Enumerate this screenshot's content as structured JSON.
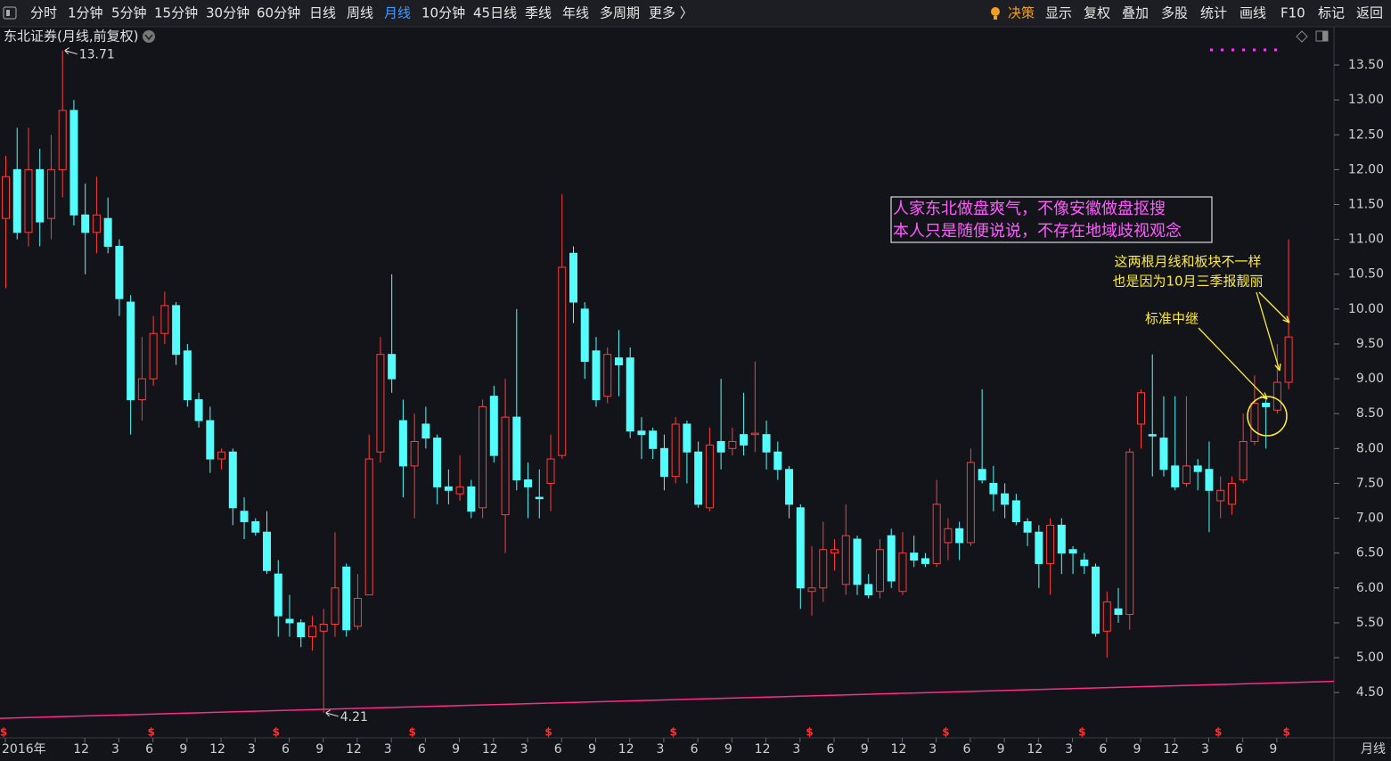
{
  "toolbar": {
    "periods": [
      "分时",
      "1分钟",
      "5分钟",
      "15分钟",
      "30分钟",
      "60分钟",
      "日线",
      "周线",
      "月线",
      "10分钟",
      "45日线",
      "季线",
      "年线",
      "多周期",
      "更多 〉"
    ],
    "active_index": 8,
    "tools": [
      "决策",
      "显示",
      "复权",
      "叠加",
      "多股",
      "统计",
      "画线",
      "F10",
      "标记",
      "返回"
    ]
  },
  "chart_data": {
    "type": "candlestick",
    "title": "东北证券(月线,前复权)",
    "period_label": "月线",
    "categories": [
      "2016年",
      null,
      null,
      null,
      null,
      null,
      null,
      "12",
      null,
      null,
      "3",
      null,
      null,
      "6",
      null,
      null,
      "9",
      null,
      null,
      "12",
      null,
      null,
      "3",
      null,
      null,
      "6",
      null,
      null,
      "9",
      null,
      null,
      "12",
      null,
      null,
      "3",
      null,
      null,
      "6",
      null,
      null,
      "9",
      null,
      null,
      "12",
      null,
      null,
      "3",
      null,
      null,
      "6",
      null,
      null,
      "9",
      null,
      null,
      "12",
      null,
      null,
      "3",
      null,
      null,
      "6",
      null,
      null,
      "9",
      null,
      null,
      "12",
      null,
      null,
      "3",
      null,
      null,
      "6",
      null,
      null,
      "9",
      null,
      null,
      "12",
      null,
      null,
      "3",
      null,
      null,
      "6",
      null,
      null,
      "9",
      null,
      null,
      "12",
      null,
      null,
      "3",
      null,
      null,
      "6",
      null,
      null,
      "9",
      null,
      null,
      "12",
      null,
      null,
      "3",
      null,
      null,
      "6",
      null,
      null,
      "9",
      null
    ],
    "open": [
      11.3,
      12.0,
      11.1,
      12.0,
      11.3,
      12.0,
      12.85,
      11.35,
      11.1,
      11.3,
      10.9,
      10.1,
      8.7,
      9.0,
      9.65,
      10.05,
      9.4,
      8.7,
      8.4,
      7.85,
      7.95,
      7.1,
      6.95,
      6.8,
      6.2,
      5.55,
      5.5,
      5.3,
      5.38,
      5.48,
      6.3,
      5.45,
      5.9,
      7.95,
      9.35,
      8.4,
      7.75,
      8.35,
      8.15,
      7.45,
      7.35,
      7.45,
      7.15,
      8.75,
      7.05,
      8.45,
      7.55,
      7.3,
      7.5,
      7.9,
      10.8,
      10.0,
      9.4,
      8.75,
      9.3,
      9.3,
      8.25,
      8.25,
      8.0,
      7.6,
      8.35,
      7.95,
      7.15,
      8.1,
      8.0,
      8.2,
      8.2,
      8.2,
      7.95,
      7.7,
      7.15,
      5.95,
      6.0,
      6.5,
      6.05,
      6.7,
      6.05,
      5.95,
      6.75,
      5.95,
      6.5,
      6.42,
      6.35,
      6.65,
      6.85,
      6.65,
      7.7,
      7.5,
      7.35,
      7.25,
      6.95,
      6.8,
      6.35,
      6.9,
      6.55,
      6.4,
      6.3,
      5.38,
      5.7,
      5.62,
      8.35,
      8.2,
      8.15,
      7.75,
      7.5,
      7.75,
      7.7,
      7.25,
      7.2,
      7.55,
      8.1,
      8.65,
      8.55,
      8.95
    ],
    "high": [
      12.2,
      12.6,
      12.6,
      12.3,
      12.5,
      13.71,
      13.0,
      11.8,
      11.9,
      11.6,
      11.0,
      10.2,
      9.6,
      9.9,
      10.25,
      10.1,
      9.5,
      8.8,
      8.6,
      8.0,
      8.0,
      7.3,
      7.0,
      7.1,
      6.4,
      5.9,
      5.55,
      5.6,
      5.7,
      6.8,
      6.35,
      6.2,
      8.2,
      9.6,
      10.5,
      8.7,
      8.5,
      8.6,
      8.2,
      7.7,
      7.9,
      7.55,
      8.7,
      8.9,
      9.0,
      10.0,
      7.8,
      7.7,
      8.2,
      11.65,
      10.9,
      10.1,
      9.6,
      9.45,
      9.7,
      9.45,
      8.45,
      8.3,
      8.2,
      8.45,
      8.4,
      8.1,
      8.3,
      9.0,
      8.3,
      8.8,
      9.25,
      8.4,
      8.1,
      7.75,
      7.2,
      6.6,
      6.95,
      6.7,
      7.2,
      6.75,
      6.2,
      6.7,
      6.85,
      6.8,
      6.75,
      6.5,
      7.55,
      7.0,
      6.95,
      8.0,
      8.85,
      7.75,
      7.5,
      7.35,
      7.0,
      6.9,
      7.0,
      7.0,
      6.6,
      6.5,
      6.35,
      5.95,
      6.0,
      8.0,
      8.85,
      9.35,
      8.75,
      8.75,
      8.75,
      7.85,
      8.1,
      7.6,
      7.6,
      8.5,
      9.05,
      8.7,
      9.5,
      11.0
    ],
    "low": [
      10.3,
      11.0,
      10.9,
      10.9,
      11.0,
      11.6,
      11.2,
      10.5,
      10.8,
      10.8,
      9.9,
      8.2,
      8.4,
      8.9,
      9.5,
      9.2,
      8.6,
      8.3,
      7.65,
      7.7,
      6.9,
      6.7,
      6.75,
      6.2,
      5.3,
      5.3,
      5.15,
      5.1,
      4.21,
      5.3,
      5.3,
      5.4,
      5.9,
      7.8,
      8.8,
      7.3,
      7.0,
      8.0,
      7.2,
      7.2,
      7.25,
      7.0,
      7.0,
      7.8,
      6.5,
      7.4,
      7.0,
      7.0,
      7.1,
      7.85,
      9.8,
      9.0,
      8.6,
      8.65,
      8.75,
      8.15,
      7.85,
      7.85,
      7.4,
      7.5,
      7.5,
      7.15,
      7.1,
      7.7,
      7.9,
      7.9,
      7.95,
      7.7,
      7.55,
      7.0,
      5.7,
      5.6,
      5.8,
      6.25,
      5.9,
      5.9,
      5.85,
      5.85,
      6.0,
      5.9,
      6.3,
      6.3,
      6.3,
      6.4,
      6.4,
      6.6,
      7.5,
      7.1,
      7.0,
      6.9,
      6.6,
      6.0,
      5.9,
      6.2,
      6.2,
      6.2,
      5.3,
      5.0,
      5.5,
      5.4,
      8.0,
      7.6,
      7.6,
      7.4,
      7.45,
      7.4,
      6.8,
      7.0,
      7.05,
      7.5,
      8.05,
      8.0,
      8.5,
      8.85
    ],
    "close": [
      11.9,
      11.1,
      12.0,
      11.25,
      12.0,
      12.85,
      11.35,
      11.1,
      11.35,
      10.9,
      10.15,
      8.7,
      9.0,
      9.65,
      10.05,
      9.35,
      8.7,
      8.4,
      7.85,
      7.95,
      7.15,
      6.95,
      6.8,
      6.25,
      5.6,
      5.5,
      5.3,
      5.45,
      5.48,
      6.0,
      5.4,
      5.85,
      7.85,
      9.35,
      9.0,
      7.75,
      8.1,
      8.15,
      7.45,
      7.4,
      7.45,
      7.1,
      8.6,
      7.9,
      8.45,
      7.55,
      7.45,
      7.28,
      7.85,
      10.6,
      10.1,
      9.25,
      8.7,
      9.35,
      9.2,
      8.25,
      8.2,
      8.0,
      7.6,
      8.35,
      7.95,
      7.2,
      8.05,
      7.95,
      8.1,
      8.05,
      8.22,
      7.95,
      7.7,
      7.2,
      6.0,
      6.0,
      6.55,
      6.55,
      6.75,
      6.05,
      5.9,
      6.55,
      6.1,
      6.5,
      6.4,
      6.35,
      7.2,
      6.85,
      6.65,
      7.8,
      7.55,
      7.35,
      7.2,
      6.95,
      6.8,
      6.35,
      6.9,
      6.5,
      6.5,
      6.32,
      5.35,
      5.8,
      5.62,
      7.95,
      8.8,
      8.18,
      7.7,
      7.45,
      7.75,
      7.67,
      7.4,
      7.4,
      7.5,
      8.1,
      8.65,
      8.6,
      8.95,
      9.6
    ],
    "up_color": "#ff3b3b",
    "down_color": "#54fcfc",
    "ylim": [
      3.85,
      14.05
    ],
    "yticks": [
      {
        "value": 4.5,
        "label": "4.50"
      },
      {
        "value": 5.0,
        "label": "5.00"
      },
      {
        "value": 5.5,
        "label": "5.50"
      },
      {
        "value": 6.0,
        "label": "6.00"
      },
      {
        "value": 6.5,
        "label": "6.50"
      },
      {
        "value": 7.0,
        "label": "7.00"
      },
      {
        "value": 7.5,
        "label": "7.50"
      },
      {
        "value": 8.0,
        "label": "8.00"
      },
      {
        "value": 8.5,
        "label": "8.50"
      },
      {
        "value": 9.0,
        "label": "9.00"
      },
      {
        "value": 9.5,
        "label": "9.50"
      },
      {
        "value": 10.0,
        "label": "10.00"
      },
      {
        "value": 10.5,
        "label": "10.50"
      },
      {
        "value": 11.0,
        "label": "11.00"
      },
      {
        "value": 11.5,
        "label": "11.50"
      },
      {
        "value": 12.0,
        "label": "12.00"
      },
      {
        "value": 12.5,
        "label": "12.50"
      },
      {
        "value": 13.0,
        "label": "13.00"
      },
      {
        "value": 13.5,
        "label": "13.50"
      }
    ],
    "grid": false,
    "trendline": {
      "color": "#ff2a8a",
      "values": [
        4.13,
        4.66
      ]
    },
    "extremes": [
      {
        "label": "13.71",
        "index": 5,
        "kind": "high"
      },
      {
        "label": "4.21",
        "index": 28,
        "kind": "low"
      }
    ],
    "dividend_marker": {
      "label": "$",
      "indices": [
        0,
        13,
        24,
        36,
        48,
        59,
        71,
        83,
        95,
        107,
        113
      ]
    },
    "note_box": [
      "人家东北做盘爽气，不像安徽做盘抠搜",
      "本人只是随便说说，不存在地域歧视观念"
    ],
    "notes": [
      "这两根月线和板块不一样",
      "也是因为10月三季报靓丽",
      "标准中继"
    ]
  }
}
